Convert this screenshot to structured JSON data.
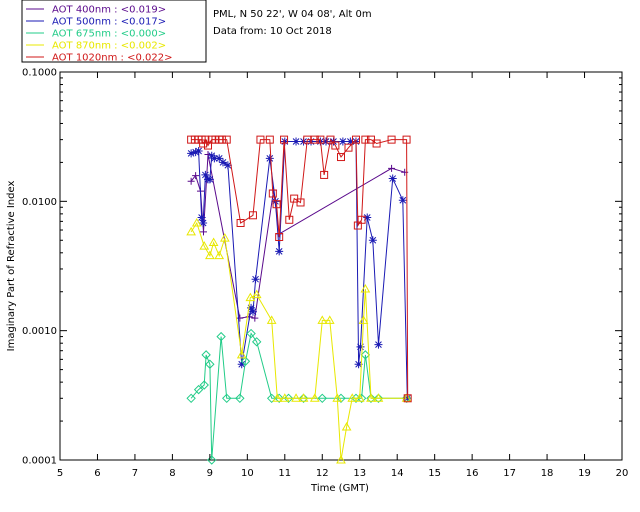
{
  "info": {
    "site": "PML, N 50 22', W 04 08', Alt 0m",
    "date": "Data from: 10 Oct 2018"
  },
  "chart_data": {
    "type": "scatter",
    "xlabel": "Time (GMT)",
    "ylabel": "Imaginary Part of Refractive Index",
    "xlim": [
      5,
      20
    ],
    "ylim": [
      0.0001,
      0.1
    ],
    "yscale": "log",
    "xticks": [
      "5",
      "6",
      "7",
      "8",
      "9",
      "10",
      "11",
      "12",
      "13",
      "14",
      "15",
      "16",
      "17",
      "18",
      "19",
      "20"
    ],
    "yticks": [
      "0.0001",
      "0.0010",
      "0.0100",
      "0.1000"
    ],
    "legend_position": "top-left",
    "series": [
      {
        "name": "AOT  400nm : <0.019>",
        "color": "#5a0a8c",
        "marker": "plus",
        "points": [
          [
            8.5,
            0.0143
          ],
          [
            8.62,
            0.0158
          ],
          [
            8.75,
            0.012
          ],
          [
            8.83,
            0.0058
          ],
          [
            8.95,
            0.023
          ],
          [
            9.8,
            0.00125
          ],
          [
            10.05,
            0.00128
          ],
          [
            10.2,
            0.00125
          ],
          [
            10.7,
            0.0122
          ],
          [
            10.85,
            0.0056
          ],
          [
            13.85,
            0.018
          ],
          [
            14.2,
            0.0168
          ]
        ]
      },
      {
        "name": "AOT  500nm : <0.017>",
        "color": "#1a1ab4",
        "marker": "star",
        "points": [
          [
            8.5,
            0.0235
          ],
          [
            8.62,
            0.024
          ],
          [
            8.7,
            0.0245
          ],
          [
            8.78,
            0.0075
          ],
          [
            8.82,
            0.0068
          ],
          [
            8.88,
            0.016
          ],
          [
            8.95,
            0.0148
          ],
          [
            9.0,
            0.0148
          ],
          [
            9.05,
            0.0225
          ],
          [
            9.12,
            0.0215
          ],
          [
            9.25,
            0.0215
          ],
          [
            9.35,
            0.02
          ],
          [
            9.48,
            0.019
          ],
          [
            9.85,
            0.00055
          ],
          [
            10.1,
            0.0015
          ],
          [
            10.15,
            0.0014
          ],
          [
            10.22,
            0.0025
          ],
          [
            10.6,
            0.0215
          ],
          [
            10.75,
            0.01
          ],
          [
            10.85,
            0.0041
          ],
          [
            11.0,
            0.029
          ],
          [
            11.3,
            0.029
          ],
          [
            11.5,
            0.029
          ],
          [
            11.7,
            0.029
          ],
          [
            11.95,
            0.029
          ],
          [
            12.1,
            0.029
          ],
          [
            12.3,
            0.029
          ],
          [
            12.55,
            0.029
          ],
          [
            12.75,
            0.029
          ],
          [
            12.9,
            0.029
          ],
          [
            12.97,
            0.00055
          ],
          [
            13.02,
            0.00075
          ],
          [
            13.2,
            0.0075
          ],
          [
            13.35,
            0.005
          ],
          [
            13.5,
            0.00078
          ],
          [
            13.88,
            0.015
          ],
          [
            14.15,
            0.0102
          ],
          [
            14.27,
            0.0003
          ]
        ]
      },
      {
        "name": "AOT  675nm : <0.000>",
        "color": "#22cc88",
        "marker": "diamond",
        "points": [
          [
            8.5,
            0.0003
          ],
          [
            8.7,
            0.00035
          ],
          [
            8.85,
            0.00038
          ],
          [
            8.9,
            0.00065
          ],
          [
            9.0,
            0.00055
          ],
          [
            9.05,
            0.0001
          ],
          [
            9.3,
            0.0009
          ],
          [
            9.45,
            0.0003
          ],
          [
            9.8,
            0.0003
          ],
          [
            9.95,
            0.00058
          ],
          [
            10.1,
            0.00095
          ],
          [
            10.25,
            0.00082
          ],
          [
            10.65,
            0.0003
          ],
          [
            10.85,
            0.0003
          ],
          [
            11.1,
            0.0003
          ],
          [
            11.5,
            0.0003
          ],
          [
            12.0,
            0.0003
          ],
          [
            12.5,
            0.0003
          ],
          [
            12.9,
            0.0003
          ],
          [
            13.05,
            0.0003
          ],
          [
            13.15,
            0.00065
          ],
          [
            13.3,
            0.0003
          ],
          [
            13.5,
            0.0003
          ],
          [
            14.25,
            0.0003
          ]
        ]
      },
      {
        "name": "AOT  870nm : <0.002>",
        "color": "#e8e800",
        "marker": "triangle",
        "points": [
          [
            8.5,
            0.0058
          ],
          [
            8.65,
            0.0068
          ],
          [
            8.85,
            0.0045
          ],
          [
            9.0,
            0.0038
          ],
          [
            9.1,
            0.0048
          ],
          [
            9.25,
            0.0038
          ],
          [
            9.4,
            0.0052
          ],
          [
            9.85,
            0.00065
          ],
          [
            10.08,
            0.0018
          ],
          [
            10.25,
            0.0019
          ],
          [
            10.65,
            0.0012
          ],
          [
            10.8,
            0.0003
          ],
          [
            11.0,
            0.0003
          ],
          [
            11.3,
            0.0003
          ],
          [
            11.5,
            0.0003
          ],
          [
            11.8,
            0.0003
          ],
          [
            12.0,
            0.0012
          ],
          [
            12.2,
            0.0012
          ],
          [
            12.4,
            0.0003
          ],
          [
            12.5,
            0.0001
          ],
          [
            12.65,
            0.00018
          ],
          [
            12.8,
            0.0003
          ],
          [
            13.0,
            0.0003
          ],
          [
            13.1,
            0.0012
          ],
          [
            13.15,
            0.0021
          ],
          [
            13.3,
            0.0003
          ],
          [
            13.5,
            0.0003
          ],
          [
            14.25,
            0.0003
          ]
        ]
      },
      {
        "name": "AOT 1020nm : <0.022>",
        "color": "#d01818",
        "marker": "square",
        "points": [
          [
            8.5,
            0.03
          ],
          [
            8.6,
            0.03
          ],
          [
            8.7,
            0.03
          ],
          [
            8.78,
            0.03
          ],
          [
            8.82,
            0.028
          ],
          [
            8.88,
            0.03
          ],
          [
            8.95,
            0.027
          ],
          [
            9.05,
            0.03
          ],
          [
            9.15,
            0.03
          ],
          [
            9.25,
            0.03
          ],
          [
            9.32,
            0.03
          ],
          [
            9.45,
            0.03
          ],
          [
            9.82,
            0.0068
          ],
          [
            10.15,
            0.0078
          ],
          [
            10.35,
            0.03
          ],
          [
            10.6,
            0.03
          ],
          [
            10.68,
            0.0115
          ],
          [
            10.78,
            0.0095
          ],
          [
            10.85,
            0.0053
          ],
          [
            10.98,
            0.03
          ],
          [
            11.12,
            0.0072
          ],
          [
            11.25,
            0.0105
          ],
          [
            11.42,
            0.0098
          ],
          [
            11.6,
            0.03
          ],
          [
            11.8,
            0.03
          ],
          [
            11.95,
            0.03
          ],
          [
            12.05,
            0.016
          ],
          [
            12.22,
            0.03
          ],
          [
            12.35,
            0.027
          ],
          [
            12.5,
            0.022
          ],
          [
            12.7,
            0.026
          ],
          [
            12.9,
            0.03
          ],
          [
            12.95,
            0.0065
          ],
          [
            13.05,
            0.0072
          ],
          [
            13.15,
            0.03
          ],
          [
            13.3,
            0.03
          ],
          [
            13.45,
            0.028
          ],
          [
            13.85,
            0.03
          ],
          [
            14.25,
            0.03
          ],
          [
            14.28,
            0.0003
          ]
        ]
      }
    ]
  }
}
